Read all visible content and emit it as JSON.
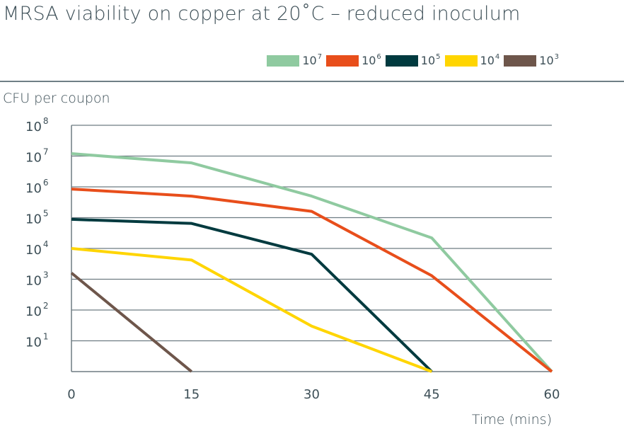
{
  "title": "MRSA viability on copper at 20˚C – reduced inoculum",
  "chart_data": {
    "type": "line",
    "title": "MRSA viability on copper at 20˚C – reduced inoculum",
    "xlabel": "Time (mins)",
    "ylabel": "CFU per coupon",
    "yscale": "log",
    "xlim": [
      0,
      60
    ],
    "ylim": [
      1,
      100000000
    ],
    "grid": "horizontal",
    "legend_position": "top-right",
    "x": [
      0,
      15,
      30,
      45,
      60
    ],
    "x_ticks": [
      "0",
      "15",
      "30",
      "45",
      "60"
    ],
    "y_ticks": [
      {
        "base": "10",
        "exp": "1"
      },
      {
        "base": "10",
        "exp": "2"
      },
      {
        "base": "10",
        "exp": "3"
      },
      {
        "base": "10",
        "exp": "4"
      },
      {
        "base": "10",
        "exp": "5"
      },
      {
        "base": "10",
        "exp": "6"
      },
      {
        "base": "10",
        "exp": "7"
      },
      {
        "base": "10",
        "exp": "8"
      }
    ],
    "series": [
      {
        "name": "10 7",
        "base": "10",
        "exp": "7",
        "color": "#8fcaa0",
        "points": [
          [
            0,
            12000000
          ],
          [
            15,
            6000000
          ],
          [
            30,
            500000
          ],
          [
            45,
            22000
          ],
          [
            60,
            1
          ]
        ]
      },
      {
        "name": "10 6",
        "base": "10",
        "exp": "6",
        "color": "#e84e1b",
        "points": [
          [
            0,
            850000
          ],
          [
            15,
            500000
          ],
          [
            30,
            160000
          ],
          [
            45,
            1300
          ],
          [
            60,
            1
          ]
        ]
      },
      {
        "name": "105",
        "base": "10",
        "exp": "5",
        "color": "#003a3f",
        "points": [
          [
            0,
            88000
          ],
          [
            15,
            65000
          ],
          [
            30,
            6500
          ],
          [
            45,
            1
          ]
        ]
      },
      {
        "name": "10 4",
        "base": "10",
        "exp": "4",
        "color": "#ffd500",
        "points": [
          [
            0,
            10000
          ],
          [
            15,
            4200
          ],
          [
            30,
            30
          ],
          [
            45,
            1
          ]
        ]
      },
      {
        "name": "10 3",
        "base": "10",
        "exp": "3",
        "color": "#6e564b",
        "points": [
          [
            0,
            1600
          ],
          [
            15,
            1
          ]
        ]
      }
    ]
  }
}
